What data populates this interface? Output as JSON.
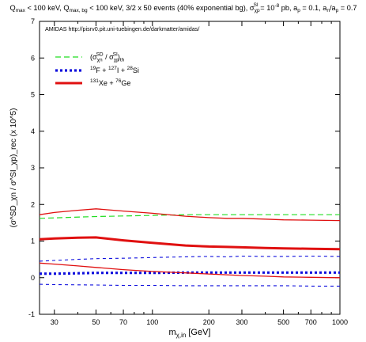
{
  "chart_data": {
    "type": "line",
    "title_text": "Q",
    "title_sub1": "max",
    "title_mid1": " < 100 keV, Q",
    "title_sub2": "max, bg",
    "title_mid2": " < 100 keV, 3/2 x 50 events (40% exponential bg), σ",
    "title_sub3": "χp",
    "title_sup3": "SI",
    "title_mid3": " = 10",
    "title_sup4": "-8",
    "title_mid4": " pb, a",
    "title_sub5": "p",
    "title_mid5": " = 0.1, a",
    "title_sub6": "n",
    "title_mid6": "/a",
    "title_sub7": "p",
    "title_mid7": " = 0.7",
    "annotation": "AMIDAS   http://pisrv0.pit.uni-tuebingen.de/darkmatter/amidas/",
    "xlabel_main": "m",
    "xlabel_sub": "χ,in",
    "xlabel_unit": " [GeV]",
    "ylabel": "(σ^SD_χn / σ^SI_χp)_rec (x 10^5)",
    "x_scale": "log",
    "xlim": [
      25,
      1000
    ],
    "ylim": [
      -1,
      7
    ],
    "x_ticks": [
      30,
      50,
      70,
      100,
      200,
      300,
      500,
      700,
      1000
    ],
    "x_tick_labels": [
      "30",
      "50",
      "70",
      "100",
      "200",
      "300",
      "500",
      "700",
      "1000"
    ],
    "y_ticks": [
      -1,
      0,
      1,
      2,
      3,
      4,
      5,
      6,
      7
    ],
    "y_tick_labels": [
      "-1",
      "0",
      "1",
      "2",
      "3",
      "4",
      "5",
      "6",
      "7"
    ],
    "grid": false,
    "legend_position": "top-left",
    "colors": {
      "green": "#22dd22",
      "blue": "#1010dd",
      "red": "#e01010"
    },
    "legend": [
      {
        "label_main": "(σ",
        "label_sub1": "χn",
        "label_sup1": "SD",
        "label_mid": " / σ",
        "label_sub2": "χp",
        "label_sup2": "SI",
        "label_end": ")",
        "label_sub3": "th",
        "color": "green",
        "style": "dash"
      },
      {
        "label_pre": "",
        "label_a_sup": "19",
        "label_a": "F + ",
        "label_b_sup": "127",
        "label_b": "I + ",
        "label_c_sup": "28",
        "label_c": "Si",
        "color": "blue",
        "style": "dot"
      },
      {
        "label_a_sup": "131",
        "label_a": "Xe + ",
        "label_b_sup": "76",
        "label_b": "Ge",
        "color": "red",
        "style": "solid"
      }
    ],
    "series": [
      {
        "color": "green",
        "style": "dash",
        "width": 1.2,
        "x": [
          25,
          50,
          100,
          150,
          200,
          300,
          500,
          1000
        ],
        "y": [
          1.62,
          1.67,
          1.7,
          1.72,
          1.72,
          1.72,
          1.72,
          1.72
        ]
      },
      {
        "color": "blue",
        "style": "dot",
        "width": 3.2,
        "x": [
          25,
          30,
          40,
          50,
          70,
          100,
          150,
          200,
          300,
          400,
          500,
          700,
          1000
        ],
        "y": [
          0.11,
          0.11,
          0.12,
          0.13,
          0.13,
          0.13,
          0.14,
          0.14,
          0.14,
          0.14,
          0.14,
          0.14,
          0.14
        ]
      },
      {
        "color": "blue",
        "style": "dash2",
        "width": 1.1,
        "x": [
          25,
          30,
          40,
          50,
          70,
          100,
          150,
          200,
          250,
          300,
          400,
          500,
          700,
          1000
        ],
        "y": [
          0.45,
          0.47,
          0.5,
          0.52,
          0.53,
          0.55,
          0.57,
          0.58,
          0.57,
          0.59,
          0.58,
          0.58,
          0.59,
          0.58
        ]
      },
      {
        "color": "blue",
        "style": "dash2",
        "width": 1.1,
        "x": [
          25,
          30,
          50,
          70,
          100,
          150,
          200,
          300,
          500,
          700,
          1000
        ],
        "y": [
          -0.18,
          -0.19,
          -0.2,
          -0.21,
          -0.21,
          -0.22,
          -0.22,
          -0.22,
          -0.22,
          -0.23,
          -0.23
        ]
      },
      {
        "color": "red",
        "style": "solid",
        "width": 3.0,
        "x": [
          25,
          30,
          40,
          50,
          70,
          100,
          150,
          200,
          250,
          300,
          400,
          500,
          700,
          1000
        ],
        "y": [
          1.05,
          1.07,
          1.09,
          1.1,
          1.02,
          0.95,
          0.88,
          0.85,
          0.84,
          0.83,
          0.81,
          0.8,
          0.79,
          0.78
        ]
      },
      {
        "color": "red",
        "style": "solid",
        "width": 1.3,
        "x": [
          25,
          30,
          40,
          50,
          70,
          100,
          150,
          200,
          250,
          300,
          400,
          500,
          700,
          1000
        ],
        "y": [
          1.72,
          1.78,
          1.84,
          1.88,
          1.82,
          1.76,
          1.68,
          1.64,
          1.62,
          1.62,
          1.6,
          1.58,
          1.57,
          1.56
        ]
      },
      {
        "color": "red",
        "style": "solid",
        "width": 1.3,
        "x": [
          25,
          30,
          40,
          50,
          70,
          100,
          150,
          200,
          250,
          300,
          400,
          500,
          700,
          1000
        ],
        "y": [
          0.4,
          0.37,
          0.32,
          0.28,
          0.22,
          0.17,
          0.13,
          0.1,
          0.08,
          0.06,
          0.04,
          0.02,
          0.01,
          0.0
        ]
      }
    ]
  }
}
